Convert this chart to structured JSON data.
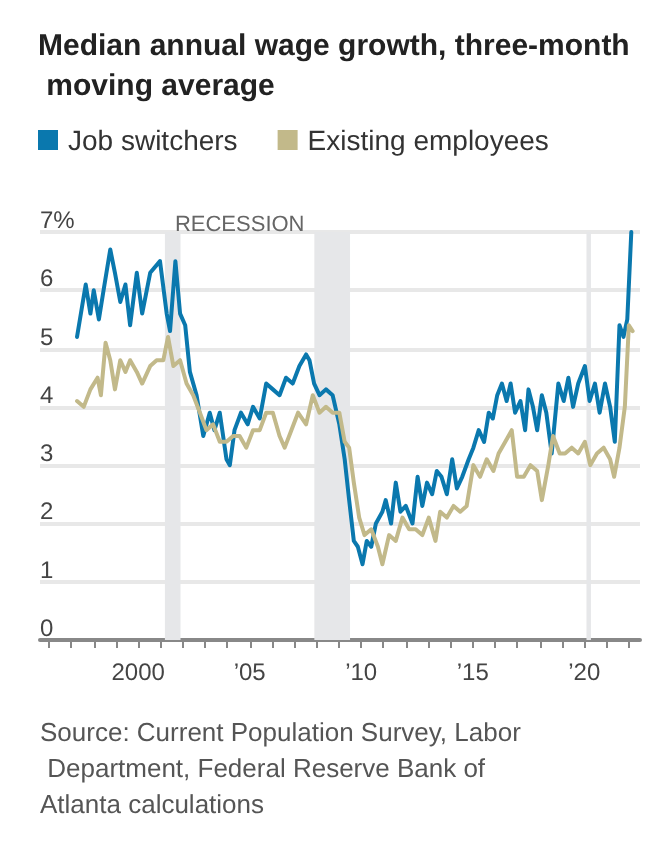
{
  "chart_data": {
    "type": "line",
    "title": "Median annual wage growth, three-month moving average",
    "xlim": [
      1995.6,
      2022.5
    ],
    "xticks": [
      {
        "value": 1996,
        "label": null
      },
      {
        "value": 1997,
        "label": null
      },
      {
        "value": 1998,
        "label": null
      },
      {
        "value": 1999,
        "label": null
      },
      {
        "value": 2000,
        "label": "2000"
      },
      {
        "value": 2001,
        "label": null
      },
      {
        "value": 2002,
        "label": null
      },
      {
        "value": 2003,
        "label": null
      },
      {
        "value": 2004,
        "label": null
      },
      {
        "value": 2005,
        "label": "’05"
      },
      {
        "value": 2006,
        "label": null
      },
      {
        "value": 2007,
        "label": null
      },
      {
        "value": 2008,
        "label": null
      },
      {
        "value": 2009,
        "label": null
      },
      {
        "value": 2010,
        "label": "’10"
      },
      {
        "value": 2011,
        "label": null
      },
      {
        "value": 2012,
        "label": null
      },
      {
        "value": 2013,
        "label": null
      },
      {
        "value": 2014,
        "label": null
      },
      {
        "value": 2015,
        "label": "’15"
      },
      {
        "value": 2016,
        "label": null
      },
      {
        "value": 2017,
        "label": null
      },
      {
        "value": 2018,
        "label": null
      },
      {
        "value": 2019,
        "label": null
      },
      {
        "value": 2020,
        "label": "’20"
      },
      {
        "value": 2021,
        "label": null
      },
      {
        "value": 2022,
        "label": null
      }
    ],
    "ylim": [
      0,
      7
    ],
    "yticks": [
      0,
      1,
      2,
      3,
      4,
      5,
      6,
      {
        "value": 7,
        "label": "7%"
      }
    ],
    "grid": "y",
    "legend": "top left",
    "bands": [
      {
        "axis": "x",
        "from": 2001.2,
        "to": 2001.9,
        "label": "RECESSION",
        "color": "#e6e7e9"
      },
      {
        "axis": "x",
        "from": 2007.9,
        "to": 2009.5,
        "label": null,
        "color": "#e6e7e9"
      },
      {
        "axis": "x",
        "from": 2020.1,
        "to": 2020.3,
        "label": null,
        "color": "#e6e7e9"
      }
    ],
    "series": [
      {
        "name": "Job switchers",
        "color": "#0a78ae",
        "x": [
          1997.26,
          1997.65,
          1997.86,
          1998.01,
          1998.24,
          1998.45,
          1998.75,
          1998.96,
          1999.2,
          1999.43,
          1999.64,
          1999.94,
          2000.18,
          2000.54,
          2000.98,
          2001.28,
          2001.43,
          2001.67,
          2001.88,
          2002.11,
          2002.32,
          2002.62,
          2002.92,
          2003.21,
          2003.42,
          2003.66,
          2003.96,
          2004.11,
          2004.32,
          2004.61,
          2004.91,
          2005.15,
          2005.45,
          2005.74,
          2006.04,
          2006.34,
          2006.63,
          2006.93,
          2007.23,
          2007.53,
          2007.68,
          2007.89,
          2008.13,
          2008.42,
          2008.72,
          2009.02,
          2009.26,
          2009.46,
          2009.67,
          2009.85,
          2010.06,
          2010.25,
          2010.45,
          2010.66,
          2010.95,
          2011.1,
          2011.34,
          2011.55,
          2011.76,
          2012.0,
          2012.3,
          2012.53,
          2012.74,
          2012.95,
          2013.18,
          2013.39,
          2013.6,
          2013.84,
          2014.08,
          2014.29,
          2014.53,
          2014.82,
          2015.03,
          2015.27,
          2015.51,
          2015.72,
          2015.9,
          2016.1,
          2016.31,
          2016.52,
          2016.7,
          2016.9,
          2017.14,
          2017.35,
          2017.5,
          2017.7,
          2017.89,
          2018.1,
          2018.3,
          2018.54,
          2018.84,
          2019.08,
          2019.29,
          2019.5,
          2019.73,
          2020.03,
          2020.24,
          2020.48,
          2020.69,
          2020.93,
          2021.16,
          2021.37,
          2021.58,
          2021.76,
          2021.93,
          2022.11
        ],
        "values": [
          5.2,
          6.1,
          5.6,
          6.0,
          5.5,
          6.0,
          6.7,
          6.3,
          5.8,
          6.1,
          5.4,
          6.3,
          5.6,
          6.3,
          6.5,
          5.6,
          5.3,
          6.5,
          5.6,
          5.4,
          4.6,
          4.2,
          3.5,
          3.9,
          3.6,
          3.9,
          3.1,
          3.0,
          3.6,
          3.9,
          3.7,
          4.0,
          3.8,
          4.4,
          4.3,
          4.2,
          4.5,
          4.4,
          4.7,
          4.9,
          4.8,
          4.4,
          4.2,
          4.3,
          4.2,
          3.7,
          3.1,
          2.4,
          1.7,
          1.6,
          1.3,
          1.7,
          1.6,
          2.0,
          2.2,
          2.4,
          2.0,
          2.7,
          2.2,
          2.3,
          2.0,
          2.8,
          2.3,
          2.7,
          2.5,
          2.9,
          2.8,
          2.5,
          3.1,
          2.6,
          2.8,
          3.1,
          3.3,
          3.6,
          3.4,
          3.9,
          3.8,
          4.2,
          4.4,
          4.1,
          4.4,
          3.9,
          4.1,
          3.6,
          4.3,
          4.0,
          3.6,
          4.2,
          3.9,
          3.2,
          4.4,
          4.1,
          4.5,
          4.0,
          4.4,
          4.7,
          4.1,
          4.4,
          3.9,
          4.4,
          4.0,
          3.4,
          5.4,
          5.2,
          5.5,
          7.0
        ]
      },
      {
        "name": "Existing employees",
        "color": "#c2b98a",
        "x": [
          1997.26,
          1997.56,
          1997.86,
          1998.18,
          1998.33,
          1998.54,
          1998.75,
          1998.96,
          1999.2,
          1999.43,
          1999.64,
          1999.94,
          2000.18,
          2000.54,
          2000.83,
          2001.13,
          2001.34,
          2001.58,
          2001.88,
          2002.17,
          2002.47,
          2002.77,
          2003.06,
          2003.36,
          2003.66,
          2003.96,
          2004.26,
          2004.55,
          2004.85,
          2005.15,
          2005.45,
          2005.74,
          2006.04,
          2006.34,
          2006.57,
          2006.87,
          2007.17,
          2007.53,
          2007.83,
          2008.13,
          2008.42,
          2008.72,
          2009.02,
          2009.26,
          2009.46,
          2009.67,
          2009.91,
          2010.15,
          2010.45,
          2010.75,
          2010.95,
          2011.25,
          2011.55,
          2011.85,
          2012.15,
          2012.44,
          2012.74,
          2013.03,
          2013.33,
          2013.54,
          2013.84,
          2014.14,
          2014.44,
          2014.73,
          2015.03,
          2015.33,
          2015.63,
          2015.93,
          2016.16,
          2016.46,
          2016.75,
          2016.99,
          2017.29,
          2017.59,
          2017.89,
          2018.1,
          2018.39,
          2018.6,
          2018.9,
          2019.14,
          2019.44,
          2019.73,
          2020.03,
          2020.27,
          2020.57,
          2020.87,
          2021.16,
          2021.34,
          2021.58,
          2021.82,
          2022.0,
          2022.17
        ],
        "values": [
          4.1,
          4.0,
          4.3,
          4.5,
          4.2,
          5.1,
          4.8,
          4.3,
          4.8,
          4.6,
          4.8,
          4.6,
          4.4,
          4.7,
          4.8,
          4.8,
          5.2,
          4.7,
          4.8,
          4.4,
          4.2,
          3.9,
          3.6,
          3.7,
          3.4,
          3.4,
          3.5,
          3.5,
          3.3,
          3.6,
          3.6,
          3.9,
          3.9,
          3.5,
          3.3,
          3.6,
          3.9,
          3.7,
          4.2,
          3.9,
          4.0,
          3.9,
          3.9,
          3.4,
          3.3,
          2.7,
          2.1,
          1.8,
          1.9,
          1.6,
          1.3,
          1.8,
          1.7,
          2.1,
          1.9,
          1.9,
          1.8,
          2.1,
          1.7,
          2.2,
          2.1,
          2.3,
          2.2,
          2.3,
          3.0,
          2.8,
          3.1,
          2.9,
          3.2,
          3.4,
          3.6,
          2.8,
          2.8,
          3.0,
          2.9,
          2.4,
          3.0,
          3.5,
          3.2,
          3.2,
          3.3,
          3.2,
          3.4,
          3.0,
          3.2,
          3.3,
          3.1,
          2.8,
          3.3,
          4.0,
          5.4,
          5.3
        ]
      }
    ],
    "annotations": [
      "Source: Current Population Survey, Labor Department, Federal Reserve Bank of Atlanta calculations"
    ]
  }
}
